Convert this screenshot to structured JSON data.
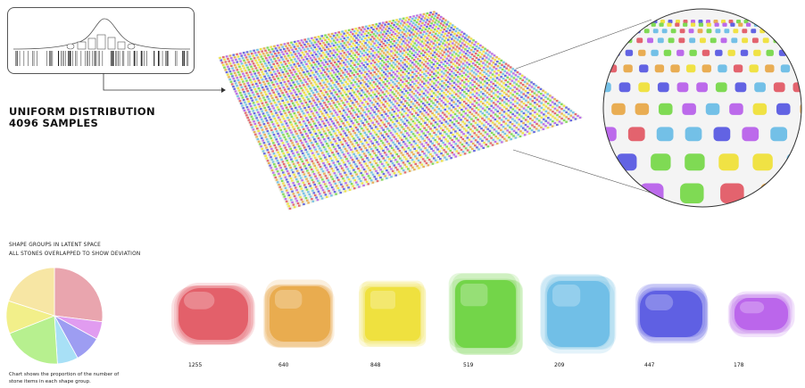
{
  "title": {
    "line1": "UNIFORM DISTRIBUTION",
    "line2": "4096 SAMPLES"
  },
  "section": {
    "line1": "SHAPE GROUPS IN LATENT SPACE",
    "line2": "ALL STONES OVERLAPPED TO SHOW DEVIATION"
  },
  "caption": {
    "line1": "Chart shows the proportion of the number of",
    "line2": "stone items in each shape group."
  },
  "colors": {
    "red": "#e25b66",
    "orange": "#e8a94a",
    "yellow": "#efe03a",
    "green": "#78d84b",
    "cyan": "#6cbde6",
    "blue": "#5a5be2",
    "purple": "#b862ea"
  },
  "pie": {
    "slices": [
      {
        "group": "pink",
        "color": "#e9a5ae",
        "value": 27
      },
      {
        "group": "violet",
        "color": "#e19cf0",
        "value": 6
      },
      {
        "group": "blue",
        "color": "#9d9df2",
        "value": 9
      },
      {
        "group": "cyan",
        "color": "#a8e0f6",
        "value": 7
      },
      {
        "group": "green",
        "color": "#b7f08f",
        "value": 20
      },
      {
        "group": "yellow",
        "color": "#f2ef8a",
        "value": 11
      },
      {
        "group": "light-yellow",
        "color": "#f7e6a4",
        "value": 20
      }
    ]
  },
  "groups": [
    {
      "name": "red",
      "count": "1255",
      "color": "#e25b66"
    },
    {
      "name": "orange",
      "count": "640",
      "color": "#e8a94a"
    },
    {
      "name": "yellow",
      "count": "848",
      "color": "#efe03a"
    },
    {
      "name": "green",
      "count": "519",
      "color": "#6fd443"
    },
    {
      "name": "cyan",
      "count": "209",
      "color": "#6cbde6"
    },
    {
      "name": "blue",
      "count": "447",
      "color": "#5a5be2"
    },
    {
      "name": "purple",
      "count": "178",
      "color": "#b862ea"
    }
  ]
}
